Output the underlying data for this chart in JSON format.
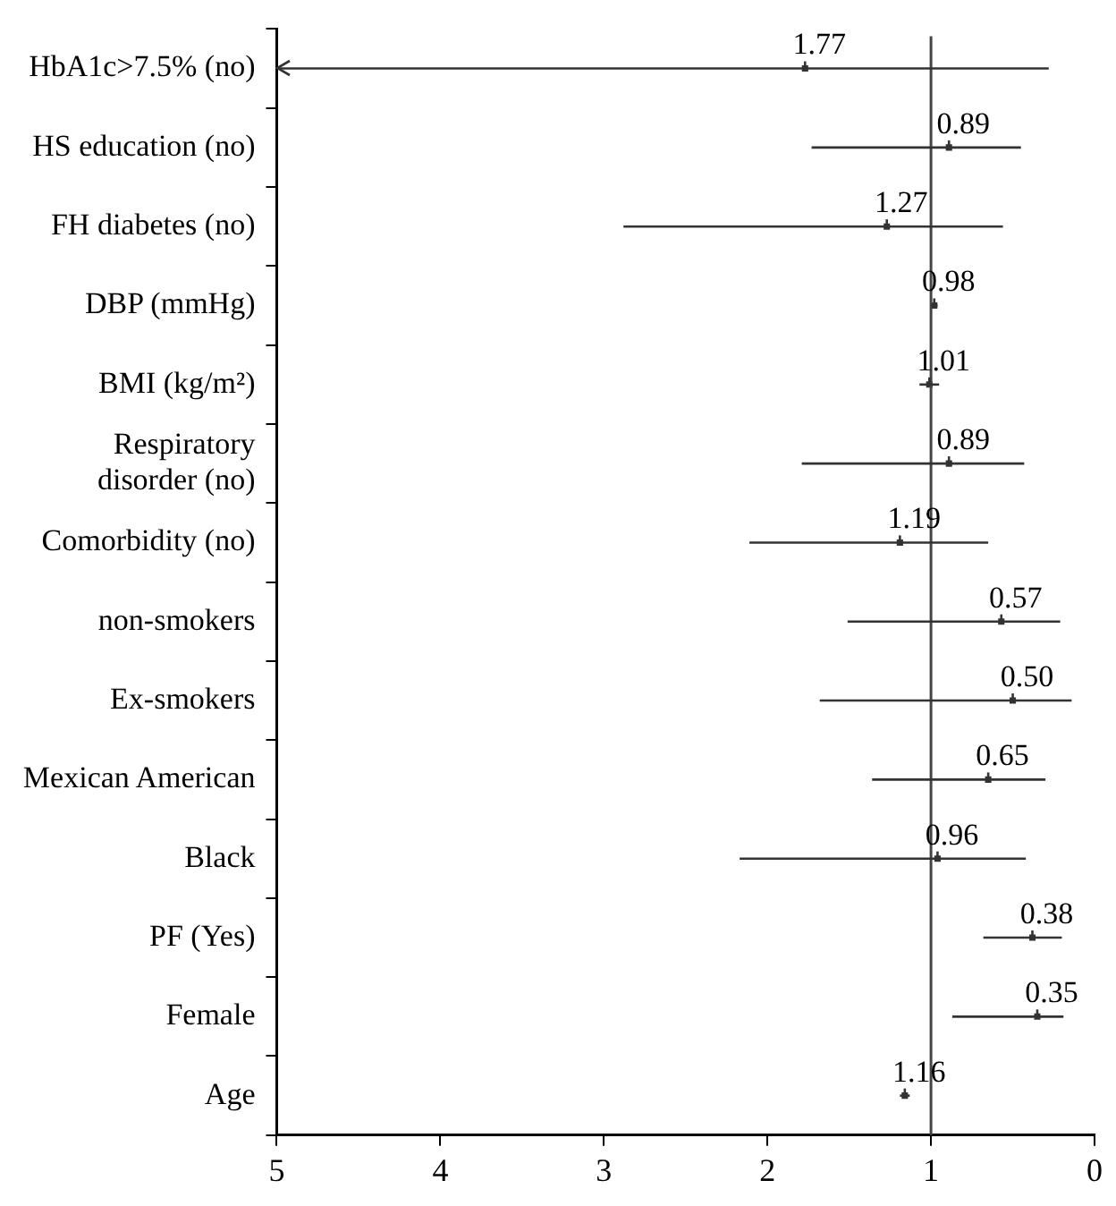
{
  "chart_data": {
    "type": "scatter",
    "orientation": "horizontal",
    "categories": [
      "HbA1c>7.5% (no)",
      "HS education (no)",
      "FH diabetes (no)",
      "DBP (mmHg)",
      "BMI (kg/m²)",
      "Respiratory disorder (no)",
      "Comorbidity (no)",
      "non-smokers",
      "Ex-smokers",
      "Mexican American",
      "Black",
      "PF (Yes)",
      "Female",
      "Age"
    ],
    "color": "#333333",
    "values": [
      1.77,
      0.89,
      1.27,
      0.98,
      1.01,
      0.89,
      1.19,
      0.57,
      0.5,
      0.65,
      0.96,
      0.38,
      0.35,
      1.16
    ],
    "value_labels": [
      "1.77",
      "0.89",
      "1.27",
      "0.98",
      "1.01",
      "0.89",
      "1.19",
      "0.57",
      "0.50",
      "0.65",
      "0.96",
      "0.38",
      "0.35",
      "1.16"
    ],
    "errors": [
      [
        0.28,
        5
      ],
      [
        0.45,
        1.73
      ],
      [
        0.56,
        2.88
      ],
      [
        0.96,
        1.0
      ],
      [
        0.95,
        1.07
      ],
      [
        0.43,
        1.79
      ],
      [
        0.65,
        2.11
      ],
      [
        0.21,
        1.51
      ],
      [
        0.14,
        1.68
      ],
      [
        0.3,
        1.36
      ],
      [
        0.42,
        2.17
      ],
      [
        0.2,
        0.68
      ],
      [
        0.19,
        0.87
      ],
      [
        1.13,
        1.19
      ]
    ],
    "xlim": [
      5,
      0
    ],
    "xticks": [
      5,
      4,
      3,
      2,
      1,
      0
    ],
    "ref_lines": [
      {
        "axis": "x",
        "value": 1
      }
    ],
    "grid": false,
    "legend": false
  }
}
